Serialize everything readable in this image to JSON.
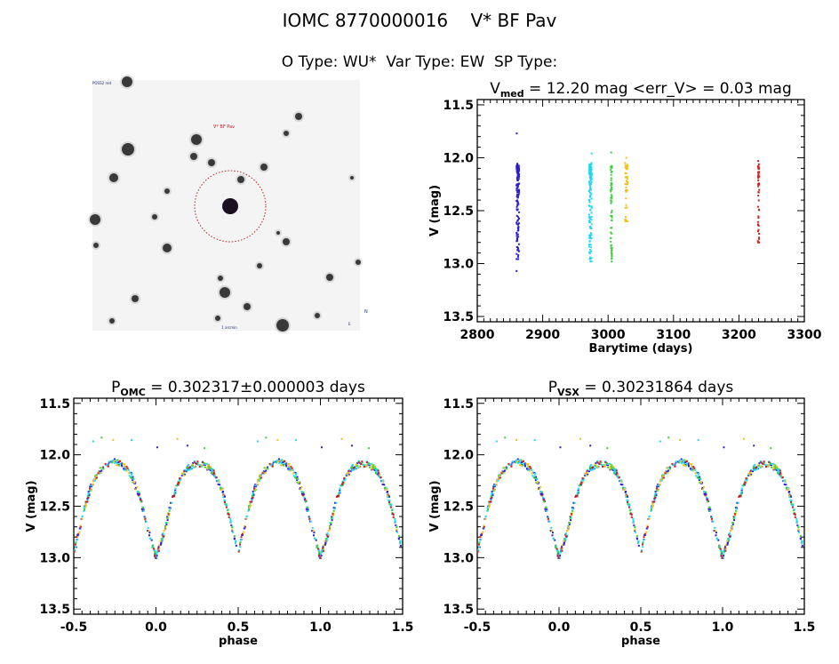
{
  "header": {
    "title": "IOMC 8770000016    V* BF Pav",
    "subtitle": "O Type: WU*  Var Type: EW  SP Type:"
  },
  "image_panel": {
    "target_label": "V* BF Pav",
    "corner_labels": [
      "POSS2 red",
      "N",
      "E",
      "1 arcmin"
    ]
  },
  "colors": {
    "s1": "#2a1fd0",
    "s2": "#22d8f0",
    "s3": "#3ad23a",
    "s4": "#f0c020",
    "s5": "#d02020",
    "circle": "#c02020"
  },
  "chart_data": [
    {
      "type": "scatter",
      "title_main": "V",
      "title_sub": "med",
      "title_rest": " = 12.20 mag <err_V> = 0.03 mag",
      "xlabel": "Barytime (days)",
      "ylabel": "V (mag)",
      "xlim": [
        2800,
        3300
      ],
      "ylim": [
        13.55,
        11.45
      ],
      "xticks": [
        "2800",
        "2900",
        "3000",
        "3100",
        "3200",
        "3300"
      ],
      "yticks": [
        "11.5",
        "12.0",
        "12.5",
        "13.0",
        "13.5"
      ],
      "series": [
        {
          "name": "season1",
          "color": "#2a1fd0",
          "t": [
            2860,
            2864
          ],
          "vmin": 11.77,
          "vmax": 13.07,
          "n": 150
        },
        {
          "name": "season2",
          "color": "#22d8f0",
          "t": [
            2971,
            2975
          ],
          "vmin": 11.96,
          "vmax": 12.98,
          "n": 150
        },
        {
          "name": "season3",
          "color": "#3ad23a",
          "t": [
            3004,
            3006
          ],
          "vmin": 11.95,
          "vmax": 12.98,
          "n": 60
        },
        {
          "name": "season4",
          "color": "#f0c020",
          "t": [
            3026,
            3030
          ],
          "vmin": 12.0,
          "vmax": 12.6,
          "n": 60
        },
        {
          "name": "season5",
          "color": "#d02020",
          "t": [
            3229,
            3231
          ],
          "vmin": 12.03,
          "vmax": 12.8,
          "n": 50
        }
      ]
    },
    {
      "type": "scatter",
      "title_main": "P",
      "title_sub": "OMC",
      "title_rest": " = 0.302317±0.000003 days",
      "xlabel": "phase",
      "ylabel": "V (mag)",
      "xlim": [
        -0.5,
        1.5
      ],
      "ylim": [
        13.55,
        11.45
      ],
      "xticks": [
        "-0.5",
        "0.0",
        "0.5",
        "1.0",
        "1.5"
      ],
      "yticks": [
        "11.5",
        "12.0",
        "12.5",
        "13.0",
        "13.5"
      ],
      "phase_curve": {
        "phase": [
          0,
          0.05,
          0.1,
          0.15,
          0.2,
          0.25,
          0.3,
          0.35,
          0.4,
          0.45,
          0.5,
          0.55,
          0.6,
          0.65,
          0.7,
          0.75,
          0.8,
          0.85,
          0.9,
          0.95,
          1.0
        ],
        "V": [
          13.0,
          12.75,
          12.42,
          12.22,
          12.12,
          12.08,
          12.1,
          12.17,
          12.33,
          12.62,
          12.95,
          12.62,
          12.33,
          12.17,
          12.1,
          12.07,
          12.1,
          12.2,
          12.4,
          12.72,
          13.0
        ]
      }
    },
    {
      "type": "scatter",
      "title_main": "P",
      "title_sub": "VSX",
      "title_rest": " = 0.30231864 days",
      "xlabel": "phase",
      "ylabel": "V (mag)",
      "xlim": [
        -0.5,
        1.5
      ],
      "ylim": [
        13.55,
        11.45
      ],
      "xticks": [
        "-0.5",
        "0.0",
        "0.5",
        "1.0",
        "1.5"
      ],
      "yticks": [
        "11.5",
        "12.0",
        "12.5",
        "13.0",
        "13.5"
      ]
    }
  ]
}
